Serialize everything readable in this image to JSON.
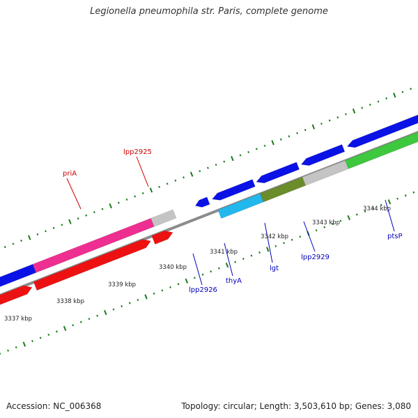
{
  "title": "Legionella pneumophila str. Paris, complete genome",
  "footer": {
    "accession": "Accession: NC_006368",
    "summary": "Topology: circular; Length: 3,503,610 bp; Genes: 3,080"
  },
  "colors": {
    "backbone": "#8c8c8c",
    "tick": "#1a7a1a",
    "label_forward": "#cc0000",
    "label_reverse": "#0000bb",
    "blue": "#0a12e6",
    "pink": "#ee2e90",
    "red": "#ee1111",
    "grey": "#c4c4c4",
    "cyan": "#22b8ee",
    "olive": "#6a8c2a",
    "green": "#3ec83e",
    "darkgrey": "#777777"
  },
  "ticks_kbp": [
    {
      "label": "3337 kbp"
    },
    {
      "label": "3338 kbp"
    },
    {
      "label": "3339 kbp"
    },
    {
      "label": "3340 kbp"
    },
    {
      "label": "3341 kbp"
    },
    {
      "label": "3342 kbp"
    },
    {
      "label": "3343 kbp"
    },
    {
      "label": "3344 kbp"
    }
  ],
  "genes": [
    {
      "label": "priA",
      "color": "red"
    },
    {
      "label": "lpp2925",
      "color": "red"
    },
    {
      "label": "lpp2926",
      "color": "blue"
    },
    {
      "label": "thyA",
      "color": "blue"
    },
    {
      "label": "lgt",
      "color": "blue"
    },
    {
      "label": "lpp2929",
      "color": "blue"
    },
    {
      "label": "ptsP",
      "color": "blue"
    }
  ]
}
